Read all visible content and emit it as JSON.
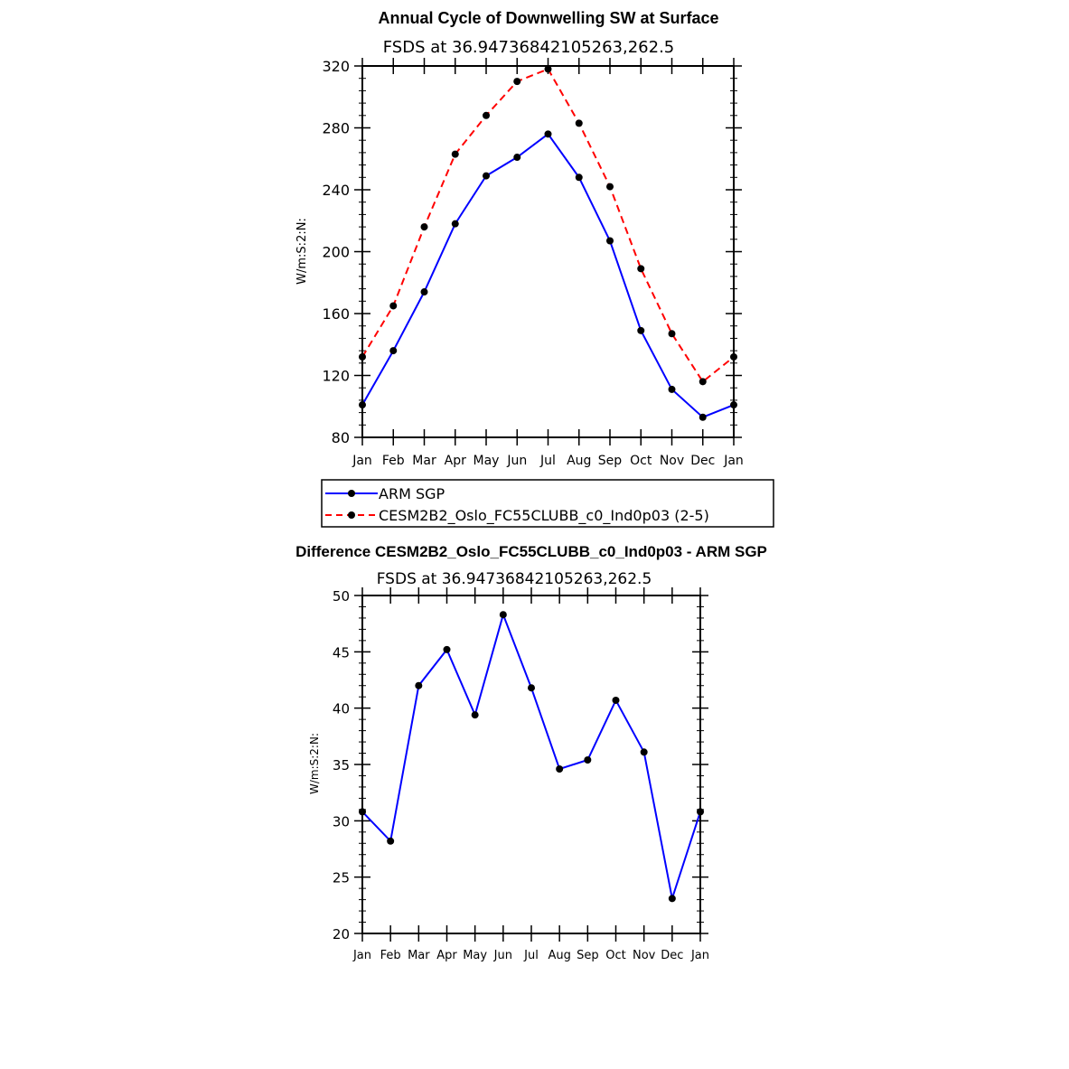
{
  "chart_data": [
    {
      "type": "line",
      "title": "Annual Cycle of Downwelling SW at Surface",
      "subtitle": "FSDS at 36.94736842105263,262.5",
      "ylabel": "W/m:S:2:N:",
      "xlabel": "",
      "categories": [
        "Jan",
        "Feb",
        "Mar",
        "Apr",
        "May",
        "Jun",
        "Jul",
        "Aug",
        "Sep",
        "Oct",
        "Nov",
        "Dec",
        "Jan"
      ],
      "ylim": [
        80,
        320
      ],
      "yticks": [
        80,
        120,
        160,
        200,
        240,
        280,
        320
      ],
      "series": [
        {
          "name": "ARM SGP",
          "color": "#0000ff",
          "dash": "solid",
          "values": [
            101,
            136,
            174,
            218,
            249,
            261,
            276,
            248,
            207,
            149,
            111,
            93,
            101
          ]
        },
        {
          "name": "CESM2B2_Oslo_FC55CLUBB_c0_Ind0p03 (2-5)",
          "color": "#ff0000",
          "dash": "dashed",
          "values": [
            132,
            165,
            216,
            263,
            288,
            310,
            318,
            283,
            242,
            189,
            147,
            116,
            132
          ]
        }
      ],
      "legend": "below"
    },
    {
      "type": "line",
      "title": "Difference CESM2B2_Oslo_FC55CLUBB_c0_Ind0p03 - ARM SGP",
      "subtitle": "FSDS at 36.94736842105263,262.5",
      "ylabel": "W/m:S:2:N:",
      "xlabel": "",
      "categories": [
        "Jan",
        "Feb",
        "Mar",
        "Apr",
        "May",
        "Jun",
        "Jul",
        "Aug",
        "Sep",
        "Oct",
        "Nov",
        "Dec",
        "Jan"
      ],
      "ylim": [
        20,
        50
      ],
      "yticks": [
        20,
        25,
        30,
        35,
        40,
        45,
        50
      ],
      "series": [
        {
          "name": "Difference",
          "color": "#0000ff",
          "dash": "solid",
          "values": [
            30.8,
            28.2,
            42.0,
            45.2,
            39.4,
            48.3,
            41.8,
            34.6,
            35.4,
            40.7,
            36.1,
            23.1,
            30.8
          ]
        }
      ]
    }
  ]
}
